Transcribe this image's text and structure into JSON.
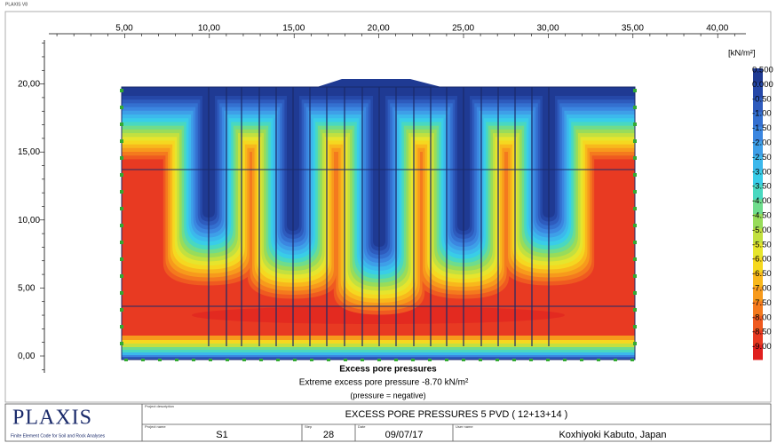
{
  "header": {
    "app": "PLAXIS V8"
  },
  "x_ruler": [
    "5,00",
    "10,00",
    "15,00",
    "20,00",
    "25,00",
    "30,00",
    "35,00",
    "40,00"
  ],
  "y_ruler": [
    "20,00",
    "15,00",
    "10,00",
    "5,00",
    "0,00"
  ],
  "legend": {
    "unit": "[kN/m²]",
    "labels": [
      "0.500",
      "0.000",
      "-0.50",
      "-1.00",
      "-1.50",
      "-2.00",
      "-2.50",
      "-3.00",
      "-3.50",
      "-4.00",
      "-4.50",
      "-5.00",
      "-5.50",
      "-6.00",
      "-6.50",
      "-7.00",
      "-7.50",
      "-8.00",
      "-8.50",
      "-9.00"
    ]
  },
  "caption": {
    "title": "Excess pore pressures",
    "extreme": "Extreme excess pore pressure -8.70 kN/m²",
    "note": "(pressure = negative)"
  },
  "footer": {
    "logo": "PLAXIS",
    "tagline": "Finite Element Code for Soil and Rock Analyses",
    "description_label": "Project description",
    "description": "EXCESS PORE PRESSURES 5 PVD ( 12+13+14 )",
    "project_label": "Project name",
    "project": "S1",
    "step_label": "Step",
    "step": "28",
    "date_label": "Date",
    "date": "09/07/17",
    "user_label": "User name",
    "user": "Koxhiyoki Kabuto, Japan"
  }
}
